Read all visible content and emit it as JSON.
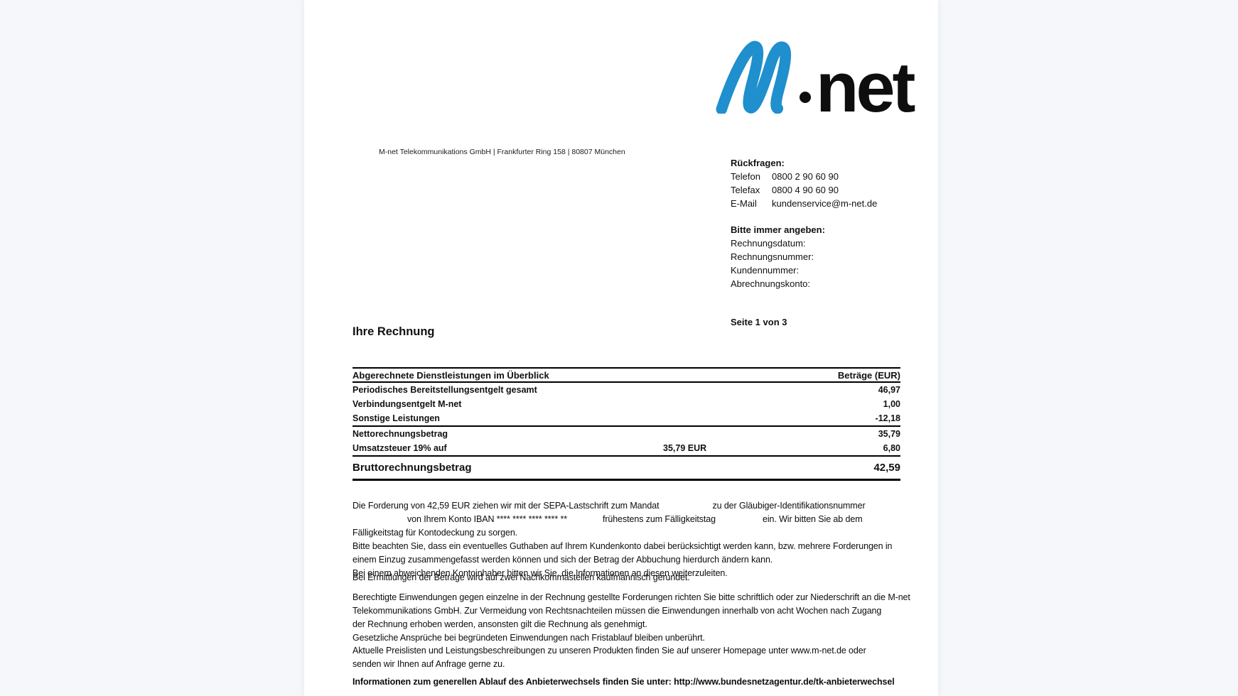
{
  "colors": {
    "background": "#f5f7fa",
    "paper": "#ffffff",
    "logo_blue": "#1f8fcd",
    "text": "#111111"
  },
  "logo": {
    "m": "M",
    "net": "net"
  },
  "sender_line": "M-net Telekommunikations GmbH | Frankfurter Ring 158 | 80807 München",
  "contact": {
    "heading": "Rückfragen:",
    "rows": [
      {
        "label": "Telefon",
        "value": "0800 2 90 60 90"
      },
      {
        "label": "Telefax",
        "value": "0800 4 90 60 90"
      },
      {
        "label": "E-Mail",
        "value": "kundenservice@m-net.de"
      }
    ]
  },
  "reference": {
    "heading": "Bitte immer angeben:",
    "items": [
      "Rechnungsdatum:",
      "Rechnungsnummer:",
      "Kundennummer:",
      "Abrechnungskonto:"
    ]
  },
  "page_indicator": "Seite 1 von 3",
  "title": "Ihre Rechnung",
  "summary_table": {
    "header": {
      "left": "Abgerechnete Dienstleistungen im Überblick",
      "right": "Beträge (EUR)"
    },
    "rows": [
      {
        "label": "Periodisches Bereitstellungsentgelt gesamt",
        "value": "46,97"
      },
      {
        "label": "Verbindungsentgelt M-net",
        "value": "1,00"
      },
      {
        "label": "Sonstige Leistungen",
        "value": "-12,18"
      }
    ],
    "subtotal_rows": [
      {
        "label": "Nettorechnungsbetrag",
        "mid": "",
        "value": "35,79"
      },
      {
        "label": "Umsatzsteuer 19% auf",
        "mid": "35,79 EUR",
        "value": "6,80"
      }
    ],
    "total": {
      "label": "Bruttorechnungsbetrag",
      "value": "42,59"
    }
  },
  "body": {
    "para1": [
      {
        "seg": [
          {
            "t": "Die Forderung von 42,59 EUR ziehen wir mit der SEPA-Lastschrift zum Mandat"
          },
          {
            "gap": 75
          },
          {
            "t": "zu der Gläubiger-Identifikationsnummer"
          }
        ]
      },
      {
        "seg": [
          {
            "gap": 77
          },
          {
            "t": "von Ihrem Konto IBAN **** **** **** **** **"
          },
          {
            "gap": 50
          },
          {
            "t": "frühestens zum Fälligkeitstag"
          },
          {
            "gap": 66
          },
          {
            "t": "ein. Wir bitten Sie ab dem"
          }
        ]
      },
      {
        "seg": [
          {
            "t": "Fälligkeitstag für Kontodeckung zu sorgen."
          }
        ]
      },
      {
        "seg": [
          {
            "t": "Bitte beachten Sie, dass ein eventuelles Guthaben auf Ihrem Kundenkonto dabei berücksichtigt werden kann, bzw. mehrere Forderungen in"
          }
        ]
      },
      {
        "seg": [
          {
            "t": "einem Einzug zusammengefasst werden können und sich der Betrag der Abbuchung hierdurch ändern kann."
          }
        ]
      },
      {
        "seg": [
          {
            "t": "Bei einem abweichenden Kontoinhaber bitten wir Sie, die Informationen an diesen weiterzuleiten."
          }
        ]
      }
    ],
    "para2": [
      {
        "seg": [
          {
            "t": "Bei Ermittlungen der Beträge wird auf zwei Nachkommastellen kaufmännisch gerundet."
          }
        ]
      }
    ],
    "para3": [
      {
        "seg": [
          {
            "t": "Berechtigte Einwendungen gegen einzelne in der Rechnung gestellte Forderungen richten Sie bitte schriftlich oder zur Niederschrift an die M-net"
          }
        ]
      },
      {
        "seg": [
          {
            "t": "Telekommunikations GmbH. Zur Vermeidung von Rechtsnachteilen müssen die Einwendungen innerhalb von acht Wochen nach Zugang"
          }
        ]
      },
      {
        "seg": [
          {
            "t": "der Rechnung erhoben werden, ansonsten gilt die Rechnung als genehmigt."
          }
        ]
      },
      {
        "seg": [
          {
            "t": "Gesetzliche Ansprüche bei begründeten Einwendungen nach Fristablauf bleiben unberührt."
          }
        ]
      }
    ],
    "para4": [
      {
        "seg": [
          {
            "t": "Aktuelle Preislisten und Leistungsbeschreibungen zu unseren Produkten finden Sie auf unserer Homepage unter www.m-net.de oder"
          }
        ]
      },
      {
        "seg": [
          {
            "t": "senden wir Ihnen auf Anfrage gerne zu."
          }
        ]
      }
    ],
    "para5": [
      {
        "seg": [
          {
            "t": "Informationen zum generellen Ablauf des Anbieterwechsels finden Sie unter: http://www.bundesnetzagentur.de/tk-anbieterwechsel"
          }
        ]
      }
    ]
  }
}
